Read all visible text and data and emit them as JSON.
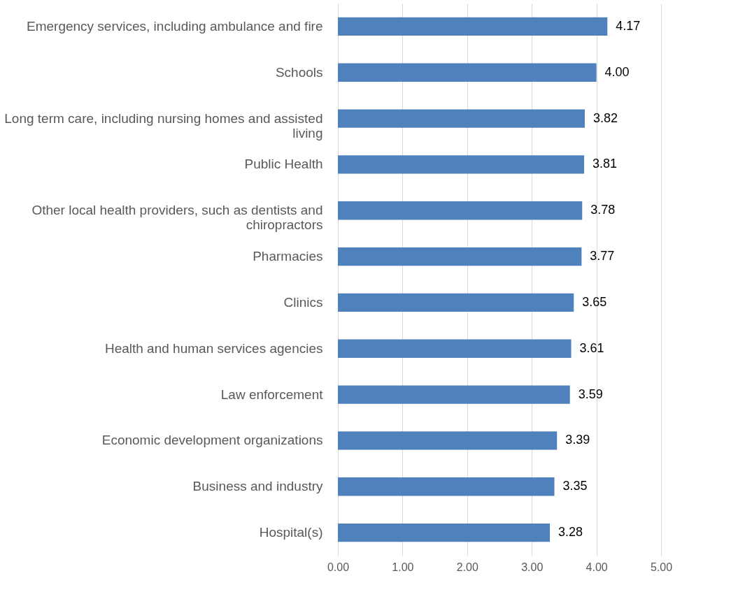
{
  "chart_data": {
    "type": "bar",
    "orientation": "horizontal",
    "categories": [
      "Emergency services, including ambulance and fire",
      "Schools",
      "Long term care, including nursing homes and assisted living",
      "Public Health",
      "Other local health providers, such as dentists and chiropractors",
      "Pharmacies",
      "Clinics",
      "Health and human services agencies",
      "Law enforcement",
      "Economic development organizations",
      "Business and industry",
      "Hospital(s)"
    ],
    "values": [
      4.17,
      4.0,
      3.82,
      3.81,
      3.78,
      3.77,
      3.65,
      3.61,
      3.59,
      3.39,
      3.35,
      3.28
    ],
    "value_labels": [
      "4.17",
      "4.00",
      "3.82",
      "3.81",
      "3.78",
      "3.77",
      "3.65",
      "3.61",
      "3.59",
      "3.39",
      "3.35",
      "3.28"
    ],
    "color": "#4f81bd",
    "xlim": [
      0,
      5
    ],
    "xticks": [
      {
        "value": 0,
        "label": "0.00"
      },
      {
        "value": 1,
        "label": "1.00"
      },
      {
        "value": 2,
        "label": "2.00"
      },
      {
        "value": 3,
        "label": "3.00"
      },
      {
        "value": 4,
        "label": "4.00"
      },
      {
        "value": 5,
        "label": "5.00"
      }
    ],
    "grid": "x"
  }
}
